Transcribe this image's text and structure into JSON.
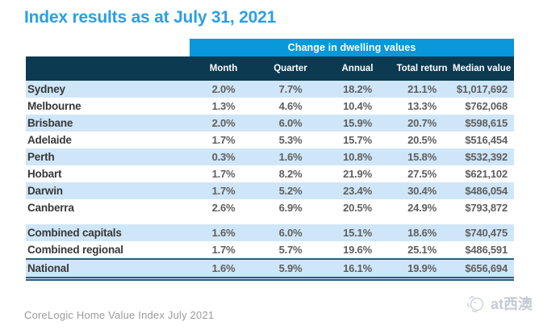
{
  "page": {
    "title": "Index results as at July 31, 2021",
    "footer": "CoreLogic Home Value Index July 2021",
    "watermark_text": "at西澳"
  },
  "colors": {
    "title_blue": "#2b9fe0",
    "banner_blue": "#0998da",
    "header_navy": "#0b3a51",
    "stripe_blue": "#cfe6f8",
    "total_border_blue": "#2b5c7c",
    "value_text": "#5e5e5e",
    "footer_gray": "#9b9b9b"
  },
  "chart_data": {
    "type": "table",
    "title": "Index results as at July 31, 2021",
    "column_group_header": "Change in dwelling values",
    "columns": [
      "Month",
      "Quarter",
      "Annual",
      "Total return",
      "Median value"
    ],
    "rows": [
      {
        "label": "Sydney",
        "values": [
          "2.0%",
          "7.7%",
          "18.2%",
          "21.1%",
          "$1,017,692"
        ]
      },
      {
        "label": "Melbourne",
        "values": [
          "1.3%",
          "4.6%",
          "10.4%",
          "13.3%",
          "$762,068"
        ]
      },
      {
        "label": "Brisbane",
        "values": [
          "2.0%",
          "6.0%",
          "15.9%",
          "20.7%",
          "$598,615"
        ]
      },
      {
        "label": "Adelaide",
        "values": [
          "1.7%",
          "5.3%",
          "15.7%",
          "20.5%",
          "$516,454"
        ]
      },
      {
        "label": "Perth",
        "values": [
          "0.3%",
          "1.6%",
          "10.8%",
          "15.8%",
          "$532,392"
        ]
      },
      {
        "label": "Hobart",
        "values": [
          "1.7%",
          "8.2%",
          "21.9%",
          "27.5%",
          "$621,102"
        ]
      },
      {
        "label": "Darwin",
        "values": [
          "1.7%",
          "5.2%",
          "23.4%",
          "30.4%",
          "$486,054"
        ]
      },
      {
        "label": "Canberra",
        "values": [
          "2.6%",
          "6.9%",
          "20.5%",
          "24.9%",
          "$793,872"
        ]
      },
      {
        "label": "Combined capitals",
        "values": [
          "1.6%",
          "6.0%",
          "15.1%",
          "18.6%",
          "$740,475"
        ],
        "spacer_before": true
      },
      {
        "label": "Combined regional",
        "values": [
          "1.7%",
          "5.7%",
          "19.6%",
          "25.1%",
          "$486,591"
        ]
      },
      {
        "label": "National",
        "values": [
          "1.6%",
          "5.9%",
          "16.1%",
          "19.9%",
          "$656,694"
        ],
        "total_row": true
      }
    ],
    "source_note": "CoreLogic Home Value Index July 2021",
    "layout": {
      "stripe_pattern": "alternating starting shaded",
      "grid": "off"
    }
  }
}
